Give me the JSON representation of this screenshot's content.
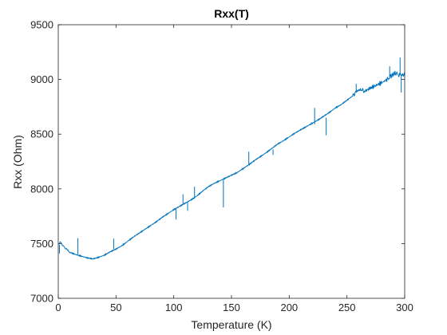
{
  "chart_data": {
    "type": "line",
    "title": "Rxx(T)",
    "xlabel": "Temperature (K)",
    "ylabel": "Rxx (Ohm)",
    "xlim": [
      0,
      300
    ],
    "ylim": [
      7000,
      9500
    ],
    "xticks": [
      0,
      50,
      100,
      150,
      200,
      250,
      300
    ],
    "yticks": [
      7000,
      7500,
      8000,
      8500,
      9000,
      9500
    ],
    "grid": false,
    "line_color": "#0072bd",
    "axis_color": "#262626",
    "series": [
      {
        "x": [
          0,
          2,
          5,
          8,
          10,
          15,
          20,
          25,
          30,
          35,
          40,
          45,
          50,
          55,
          60,
          65,
          70,
          75,
          80,
          85,
          90,
          95,
          100,
          105,
          110,
          115,
          120,
          125,
          130,
          135,
          140,
          145,
          150,
          155,
          160,
          165,
          170,
          175,
          180,
          185,
          190,
          195,
          200,
          205,
          210,
          215,
          220,
          225,
          230,
          235,
          240,
          245,
          250,
          255,
          258,
          262,
          265,
          270,
          275,
          280,
          285,
          288,
          292,
          295,
          298,
          300
        ],
        "y": [
          7500,
          7510,
          7470,
          7440,
          7420,
          7400,
          7385,
          7370,
          7360,
          7375,
          7395,
          7425,
          7450,
          7480,
          7520,
          7560,
          7595,
          7630,
          7665,
          7700,
          7740,
          7775,
          7810,
          7840,
          7870,
          7900,
          7935,
          7980,
          8020,
          8050,
          8075,
          8100,
          8125,
          8150,
          8185,
          8220,
          8260,
          8295,
          8330,
          8370,
          8410,
          8440,
          8475,
          8510,
          8540,
          8570,
          8600,
          8630,
          8665,
          8700,
          8740,
          8770,
          8810,
          8850,
          8890,
          8910,
          8890,
          8920,
          8945,
          8970,
          9000,
          9030,
          9060,
          9040,
          9050,
          9040
        ]
      }
    ],
    "spikes": [
      {
        "x": 1,
        "y0": 7490,
        "y1": 7410
      },
      {
        "x": 17,
        "y0": 7400,
        "y1": 7550
      },
      {
        "x": 48,
        "y0": 7450,
        "y1": 7545
      },
      {
        "x": 102,
        "y0": 7825,
        "y1": 7720
      },
      {
        "x": 108,
        "y0": 7860,
        "y1": 7950
      },
      {
        "x": 112,
        "y0": 7880,
        "y1": 7800
      },
      {
        "x": 118,
        "y0": 7910,
        "y1": 8020
      },
      {
        "x": 143,
        "y0": 8095,
        "y1": 7830
      },
      {
        "x": 165,
        "y0": 8220,
        "y1": 8340
      },
      {
        "x": 186,
        "y0": 8360,
        "y1": 8310
      },
      {
        "x": 222,
        "y0": 8590,
        "y1": 8740
      },
      {
        "x": 232,
        "y0": 8650,
        "y1": 8490
      },
      {
        "x": 258,
        "y0": 8880,
        "y1": 8960
      },
      {
        "x": 287,
        "y0": 9020,
        "y1": 9120
      },
      {
        "x": 296,
        "y0": 9040,
        "y1": 9200
      },
      {
        "x": 297,
        "y0": 9040,
        "y1": 8880
      }
    ]
  }
}
